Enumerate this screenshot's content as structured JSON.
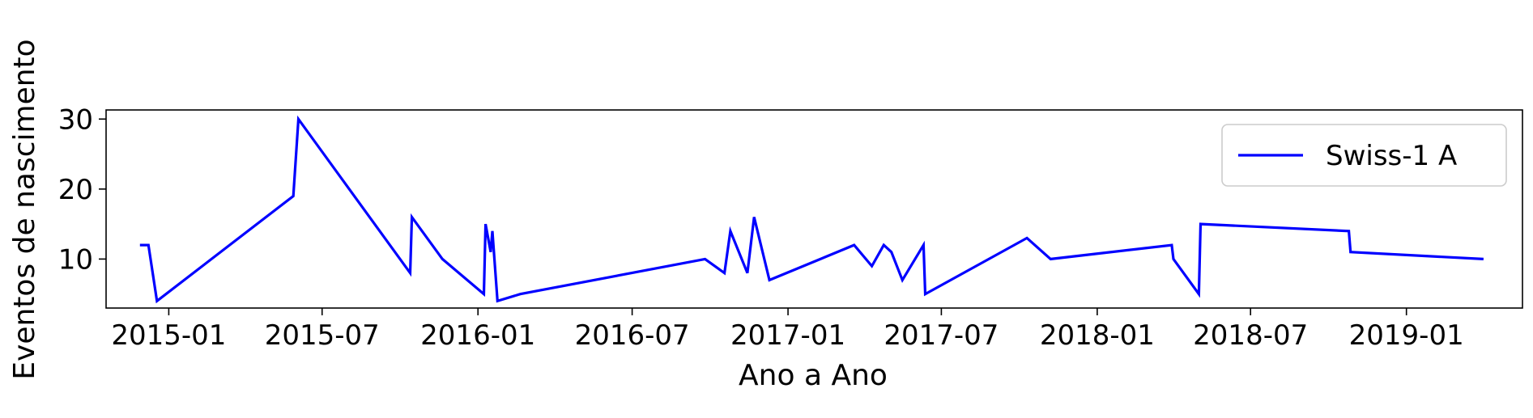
{
  "chart_data": {
    "type": "line",
    "xlabel": "Ano a Ano",
    "ylabel": "Eventos de nascimento",
    "x_ticks": [
      "2015-01",
      "2015-07",
      "2016-01",
      "2016-07",
      "2017-01",
      "2017-07",
      "2018-01",
      "2018-07",
      "2019-01"
    ],
    "y_ticks": [
      10,
      20,
      30
    ],
    "xlim": [
      "2014-10-19",
      "2019-05-18"
    ],
    "ylim": [
      3,
      31.3
    ],
    "grid": false,
    "legend_position": "top-right",
    "series": [
      {
        "name": "Swiss-1 A",
        "color": "#0000ff",
        "points": [
          [
            "2014-11-28",
            12
          ],
          [
            "2014-12-08",
            12
          ],
          [
            "2014-12-18",
            4
          ],
          [
            "2015-05-28",
            19
          ],
          [
            "2015-06-03",
            30
          ],
          [
            "2015-10-13",
            8
          ],
          [
            "2015-10-15",
            16
          ],
          [
            "2015-11-20",
            10
          ],
          [
            "2016-01-08",
            5
          ],
          [
            "2016-01-10",
            15
          ],
          [
            "2016-01-16",
            11
          ],
          [
            "2016-01-18",
            14
          ],
          [
            "2016-01-24",
            4
          ],
          [
            "2016-02-20",
            5
          ],
          [
            "2016-09-25",
            10
          ],
          [
            "2016-10-18",
            8
          ],
          [
            "2016-10-25",
            14
          ],
          [
            "2016-11-14",
            8
          ],
          [
            "2016-11-22",
            16
          ],
          [
            "2016-12-10",
            7
          ],
          [
            "2017-03-20",
            12
          ],
          [
            "2017-04-10",
            9
          ],
          [
            "2017-04-24",
            12
          ],
          [
            "2017-05-03",
            11
          ],
          [
            "2017-05-16",
            7
          ],
          [
            "2017-06-10",
            12
          ],
          [
            "2017-06-12",
            5
          ],
          [
            "2017-10-10",
            13
          ],
          [
            "2017-11-07",
            10
          ],
          [
            "2018-03-30",
            12
          ],
          [
            "2018-04-01",
            10
          ],
          [
            "2018-05-01",
            5
          ],
          [
            "2018-05-03",
            15
          ],
          [
            "2018-10-25",
            14
          ],
          [
            "2018-10-27",
            11
          ],
          [
            "2019-04-02",
            10
          ]
        ]
      }
    ]
  }
}
